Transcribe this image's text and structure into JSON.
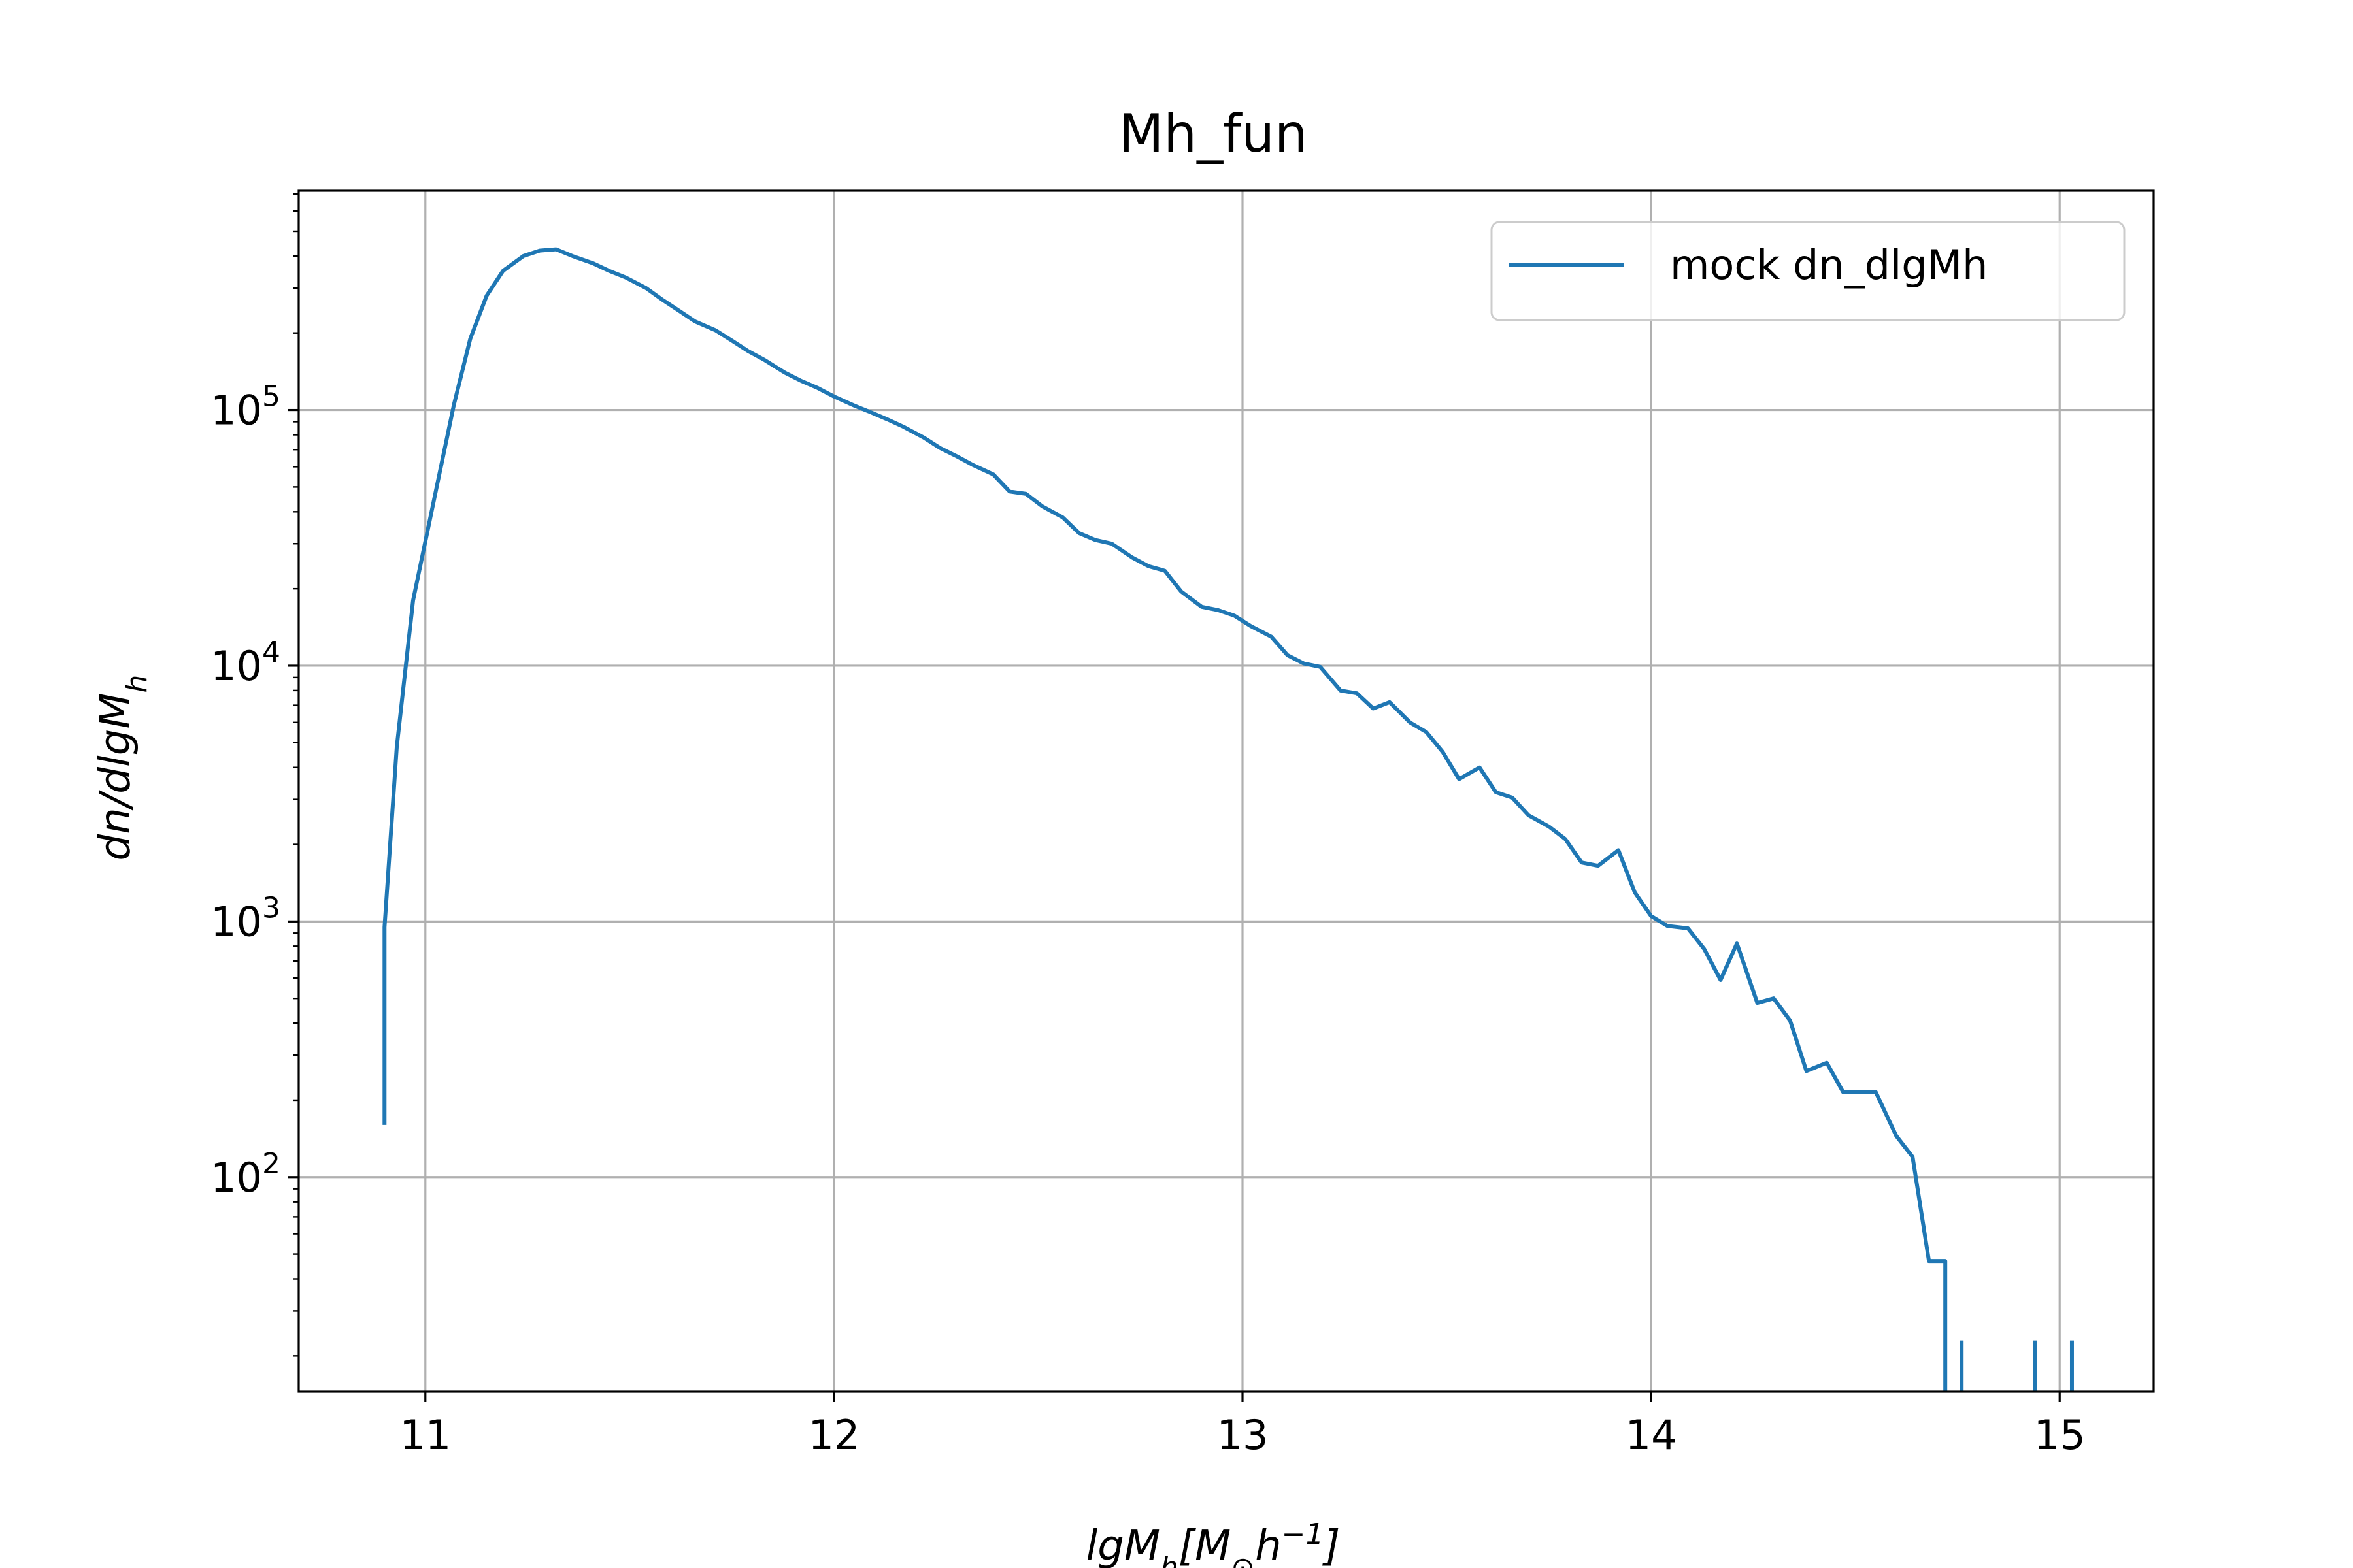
{
  "chart_data": {
    "type": "line",
    "title": "Mh_fun",
    "xlabel": "lgM_h[M_⊙h^-1]",
    "ylabel": "dn/dlgM_h",
    "yscale": "log",
    "xlim": [
      10.69,
      15.23
    ],
    "ylim": [
      14.5,
      720000
    ],
    "grid": true,
    "legend_position": "top-right",
    "x_ticks": [
      "11",
      "12",
      "13",
      "14",
      "15"
    ],
    "y_ticks": [
      {
        "base": "10",
        "exp": "2",
        "value": 100
      },
      {
        "base": "10",
        "exp": "3",
        "value": 1000
      },
      {
        "base": "10",
        "exp": "4",
        "value": 10000
      },
      {
        "base": "10",
        "exp": "5",
        "value": 100000
      }
    ],
    "series": [
      {
        "name": "mock dn_dlgMh",
        "color": "#1f77b4",
        "points": [
          [
            10.9,
            160
          ],
          [
            10.9,
            950
          ],
          [
            10.93,
            4800
          ],
          [
            10.97,
            18000
          ],
          [
            11.03,
            52000
          ],
          [
            11.07,
            105000
          ],
          [
            11.11,
            190000
          ],
          [
            11.15,
            280000
          ],
          [
            11.19,
            350000
          ],
          [
            11.24,
            400000
          ],
          [
            11.28,
            420000
          ],
          [
            11.32,
            425000
          ],
          [
            11.36,
            400000
          ],
          [
            11.41,
            375000
          ],
          [
            11.45,
            350000
          ],
          [
            11.49,
            330000
          ],
          [
            11.54,
            300000
          ],
          [
            11.58,
            270000
          ],
          [
            11.62,
            245000
          ],
          [
            11.66,
            222000
          ],
          [
            11.71,
            205000
          ],
          [
            11.75,
            187000
          ],
          [
            11.79,
            170000
          ],
          [
            11.83,
            157000
          ],
          [
            11.88,
            140000
          ],
          [
            11.92,
            130000
          ],
          [
            11.96,
            122000
          ],
          [
            12.0,
            113000
          ],
          [
            12.05,
            104000
          ],
          [
            12.09,
            98000
          ],
          [
            12.13,
            92000
          ],
          [
            12.17,
            86000
          ],
          [
            12.22,
            78000
          ],
          [
            12.26,
            71000
          ],
          [
            12.3,
            66000
          ],
          [
            12.34,
            61000
          ],
          [
            12.39,
            56000
          ],
          [
            12.43,
            48000
          ],
          [
            12.47,
            47000
          ],
          [
            12.51,
            42000
          ],
          [
            12.56,
            38000
          ],
          [
            12.6,
            33000
          ],
          [
            12.64,
            31000
          ],
          [
            12.68,
            30000
          ],
          [
            12.73,
            26500
          ],
          [
            12.77,
            24500
          ],
          [
            12.81,
            23500
          ],
          [
            12.85,
            19500
          ],
          [
            12.9,
            17000
          ],
          [
            12.94,
            16500
          ],
          [
            12.98,
            15700
          ],
          [
            13.02,
            14300
          ],
          [
            13.07,
            13000
          ],
          [
            13.11,
            11000
          ],
          [
            13.15,
            10200
          ],
          [
            13.19,
            9900
          ],
          [
            13.24,
            8000
          ],
          [
            13.28,
            7800
          ],
          [
            13.32,
            6800
          ],
          [
            13.36,
            7200
          ],
          [
            13.41,
            6000
          ],
          [
            13.45,
            5500
          ],
          [
            13.49,
            4600
          ],
          [
            13.53,
            3600
          ],
          [
            13.58,
            4000
          ],
          [
            13.62,
            3200
          ],
          [
            13.66,
            3050
          ],
          [
            13.7,
            2600
          ],
          [
            13.75,
            2350
          ],
          [
            13.79,
            2100
          ],
          [
            13.83,
            1700
          ],
          [
            13.87,
            1650
          ],
          [
            13.92,
            1900
          ],
          [
            13.96,
            1300
          ],
          [
            14.0,
            1050
          ],
          [
            14.04,
            960
          ],
          [
            14.09,
            940
          ],
          [
            14.13,
            780
          ],
          [
            14.17,
            590
          ],
          [
            14.21,
            820
          ],
          [
            14.26,
            480
          ],
          [
            14.3,
            500
          ],
          [
            14.34,
            410
          ],
          [
            14.38,
            260
          ],
          [
            14.43,
            280
          ],
          [
            14.47,
            215
          ],
          [
            14.51,
            215
          ],
          [
            14.55,
            215
          ],
          [
            14.6,
            145
          ],
          [
            14.64,
            120
          ],
          [
            14.68,
            47
          ],
          [
            14.72,
            47
          ],
          [
            14.72,
            14.5
          ]
        ],
        "isolated_segments": [
          {
            "x": 14.76,
            "y_top": 23
          },
          {
            "x": 14.94,
            "y_top": 23
          },
          {
            "x": 15.03,
            "y_top": 23
          }
        ]
      }
    ]
  }
}
